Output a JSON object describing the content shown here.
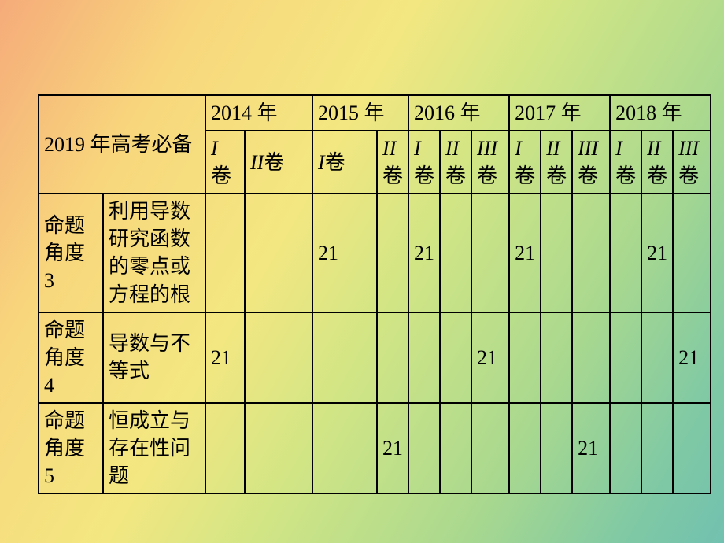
{
  "header": {
    "title": "2019 年高考必备",
    "years": [
      "2014 年",
      "2015 年",
      "2016 年",
      "2017 年",
      "2018 年"
    ],
    "sub_I": "I",
    "sub_II": "II",
    "sub_III": "III",
    "juan_suffix": "卷"
  },
  "rows": [
    {
      "angle_label": "命题角度 3",
      "topic": "利用导数研究函数的零点或方程的根",
      "cells": [
        "",
        "",
        "21",
        "",
        "21",
        "",
        "",
        "21",
        "",
        "",
        "",
        "21",
        ""
      ]
    },
    {
      "angle_label": "命题角度 4",
      "topic": "导数与不等式",
      "cells": [
        "21",
        "",
        "",
        "",
        "",
        "",
        "21",
        "",
        "",
        "",
        "",
        "",
        "21"
      ]
    },
    {
      "angle_label": "命题角度 5",
      "topic": "恒成立与存在性问题",
      "cells": [
        "",
        "",
        "",
        "21",
        "",
        "",
        "",
        "",
        "",
        "21",
        "",
        "",
        ""
      ]
    }
  ],
  "style": {
    "border_color": "#000000",
    "font_size_pt": 20,
    "background_gradient": [
      "#f5ab7a",
      "#f8d77c",
      "#f3e781",
      "#d1e585",
      "#a8d88f",
      "#80c9a4",
      "#72c1b0"
    ]
  }
}
